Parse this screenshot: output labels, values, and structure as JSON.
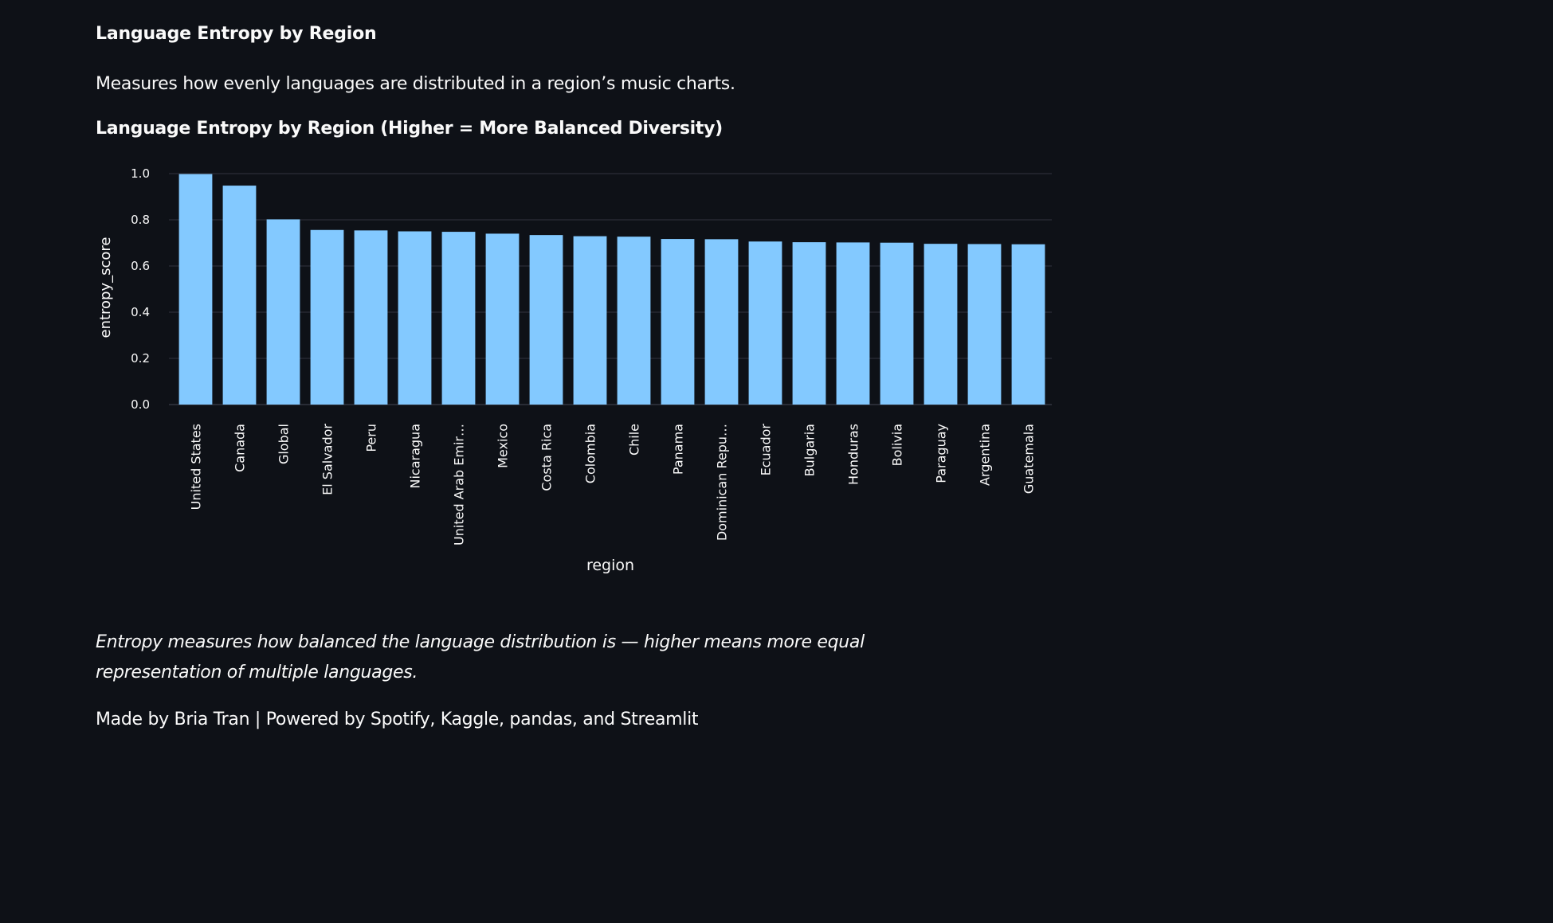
{
  "heading": "Language Entropy by Region",
  "description": "Measures how evenly languages are distributed in a region’s music charts.",
  "caption": "Entropy measures how balanced the language distribution is — higher means more equal representation of multiple languages.",
  "footer": "Made by Bria Tran | Powered by Spotify, Kaggle, pandas, and Streamlit",
  "colors": {
    "background": "#0e1117",
    "bar": "#83c9ff",
    "grid": "#31333f",
    "text": "#fafafa"
  },
  "chart_data": {
    "type": "bar",
    "title": "Language Entropy by Region (Higher = More Balanced Diversity)",
    "xlabel": "region",
    "ylabel": "entropy_score",
    "ylim": [
      0,
      1.0
    ],
    "yticks": [
      "0.0",
      "0.2",
      "0.4",
      "0.6",
      "0.8",
      "1.0"
    ],
    "grid": true,
    "categories": [
      "United States",
      "Canada",
      "Global",
      "El Salvador",
      "Peru",
      "Nicaragua",
      "United Arab Emir…",
      "Mexico",
      "Costa Rica",
      "Colombia",
      "Chile",
      "Panama",
      "Dominican Repu…",
      "Ecuador",
      "Bulgaria",
      "Honduras",
      "Bolivia",
      "Paraguay",
      "Argentina",
      "Guatemala"
    ],
    "values": [
      0.998,
      0.948,
      0.802,
      0.756,
      0.754,
      0.75,
      0.748,
      0.74,
      0.734,
      0.729,
      0.727,
      0.717,
      0.716,
      0.706,
      0.703,
      0.702,
      0.701,
      0.696,
      0.695,
      0.694
    ]
  }
}
